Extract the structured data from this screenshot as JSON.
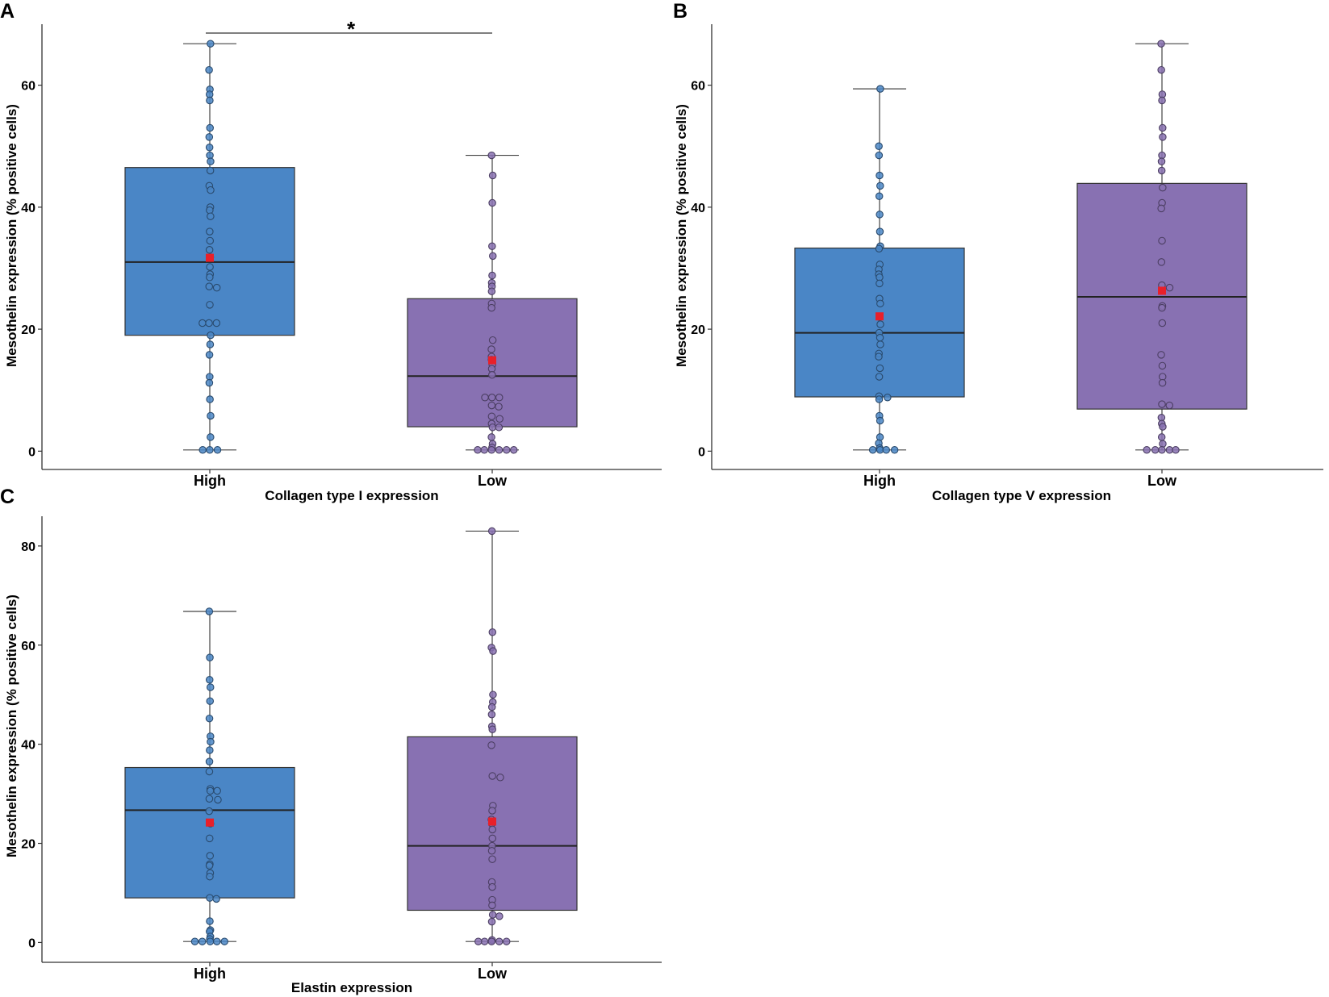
{
  "colors": {
    "high": "#4a86c6",
    "low": "#8871b2",
    "mean_marker": "#e8202a",
    "axis": "#333333"
  },
  "chart_data": [
    {
      "id": "A",
      "type": "box",
      "panel_label": "A",
      "xlabel": "Collagen type I expression",
      "ylabel": "Mesothelin expression (% positive cells)",
      "ylim": [
        -3,
        70
      ],
      "yticks": [
        0,
        20,
        40,
        60
      ],
      "ytick_labels": [
        "0",
        "20",
        "40",
        "60"
      ],
      "categories": [
        "High",
        "Low"
      ],
      "significance": {
        "between": [
          "High",
          "Low"
        ],
        "label": "*"
      },
      "groups": [
        {
          "name": "High",
          "color": "#4a86c6",
          "q1": 19,
          "median": 31,
          "q3": 46.5,
          "whisker_low": 0.2,
          "whisker_high": 66.8,
          "mean": 31.7,
          "points": [
            66.8,
            62.5,
            59.3,
            58.5,
            57.5,
            53,
            51.5,
            49.8,
            48.5,
            47.5,
            46,
            43.5,
            42.8,
            40,
            39.5,
            38.5,
            36,
            34.5,
            33,
            31.8,
            30.2,
            29,
            28.5,
            27,
            26.8,
            24,
            21,
            21,
            21,
            19,
            17.5,
            15.8,
            12.2,
            11.2,
            8.5,
            5.8,
            2.3,
            0.2,
            0.2,
            0.2
          ]
        },
        {
          "name": "Low",
          "color": "#8871b2",
          "q1": 4,
          "median": 12.3,
          "q3": 25,
          "whisker_low": 0.2,
          "whisker_high": 48.5,
          "mean": 14.9,
          "points": [
            48.5,
            45.2,
            40.7,
            33.6,
            32,
            28.8,
            27.6,
            27,
            26.2,
            24.2,
            23.5,
            18.2,
            16.7,
            15.5,
            15,
            14.2,
            13.5,
            12.5,
            8.8,
            8.8,
            8.8,
            7.5,
            7.3,
            5.7,
            5.3,
            4.5,
            3.9,
            3.9,
            2.3,
            1.2,
            0.6,
            0.2,
            0.2,
            0.2,
            0.2,
            0.2,
            0.2
          ]
        }
      ]
    },
    {
      "id": "B",
      "type": "box",
      "panel_label": "B",
      "xlabel": "Collagen type V expression",
      "ylabel": "Mesothelin expression (% positive cells)",
      "ylim": [
        -3,
        70
      ],
      "yticks": [
        0,
        20,
        40,
        60
      ],
      "ytick_labels": [
        "0",
        "20",
        "40",
        "60"
      ],
      "categories": [
        "High",
        "Low"
      ],
      "significance": null,
      "groups": [
        {
          "name": "High",
          "color": "#4a86c6",
          "q1": 8.9,
          "median": 19.4,
          "q3": 33.3,
          "whisker_low": 0.2,
          "whisker_high": 59.4,
          "mean": 22.1,
          "points": [
            59.4,
            50,
            48.5,
            45.2,
            43.5,
            41.8,
            38.8,
            36,
            33.6,
            33.2,
            30.6,
            29.8,
            29,
            28.5,
            27.5,
            25,
            24.2,
            22,
            20.8,
            19.4,
            18.6,
            17.5,
            16,
            15.5,
            13.6,
            12.2,
            9,
            8.8,
            8.5,
            5.8,
            5,
            2.3,
            1.3,
            0.5,
            0.2,
            0.2,
            0.2,
            0.2
          ]
        },
        {
          "name": "Low",
          "color": "#8871b2",
          "q1": 6.9,
          "median": 25.3,
          "q3": 43.9,
          "whisker_low": 0.2,
          "whisker_high": 66.8,
          "mean": 26.3,
          "points": [
            66.8,
            62.5,
            58.5,
            57.5,
            53,
            51.5,
            48.5,
            47.5,
            46,
            43.2,
            40.7,
            39.8,
            34.5,
            31,
            27.2,
            26.8,
            23.8,
            23.5,
            21,
            15.8,
            14,
            12.2,
            11.2,
            7.7,
            7.5,
            5.5,
            4.5,
            4,
            2.3,
            1.2,
            0.2,
            0.2,
            0.2,
            0.2,
            0.2
          ]
        }
      ]
    },
    {
      "id": "C",
      "type": "box",
      "panel_label": "C",
      "xlabel": "Elastin expression",
      "ylabel": "Mesothelin expression (% positive cells)",
      "ylim": [
        -4,
        86
      ],
      "yticks": [
        0,
        20,
        40,
        60,
        80
      ],
      "ytick_labels": [
        "0",
        "20",
        "40",
        "60",
        "80"
      ],
      "categories": [
        "High",
        "Low"
      ],
      "significance": null,
      "groups": [
        {
          "name": "High",
          "color": "#4a86c6",
          "q1": 9,
          "median": 26.7,
          "q3": 35.3,
          "whisker_low": 0.2,
          "whisker_high": 66.8,
          "mean": 24.2,
          "points": [
            66.8,
            57.5,
            53,
            51.5,
            48.7,
            45.2,
            41.6,
            40.5,
            38.8,
            36.5,
            34.5,
            31,
            30.6,
            30.6,
            29,
            28.8,
            26.5,
            24,
            21,
            17.5,
            15.8,
            15.5,
            14,
            13.3,
            9,
            8.8,
            4.3,
            2.5,
            2.2,
            1.2,
            0.7,
            0.2,
            0.2,
            0.2,
            0.2,
            0.2
          ]
        },
        {
          "name": "Low",
          "color": "#8871b2",
          "q1": 6.5,
          "median": 19.5,
          "q3": 41.5,
          "whisker_low": 0.2,
          "whisker_high": 83,
          "mean": 24.4,
          "points": [
            83,
            62.6,
            59.5,
            58.8,
            50,
            48.5,
            47.5,
            46,
            43.6,
            43,
            39.8,
            33.6,
            33.3,
            27.6,
            26.6,
            24.8,
            24,
            22.8,
            21,
            19.5,
            18.5,
            16.8,
            12.2,
            11.2,
            8.6,
            7.5,
            5.6,
            5.3,
            4.2,
            0.5,
            0.2,
            0.2,
            0.2,
            0.2,
            0.2
          ]
        }
      ]
    }
  ]
}
